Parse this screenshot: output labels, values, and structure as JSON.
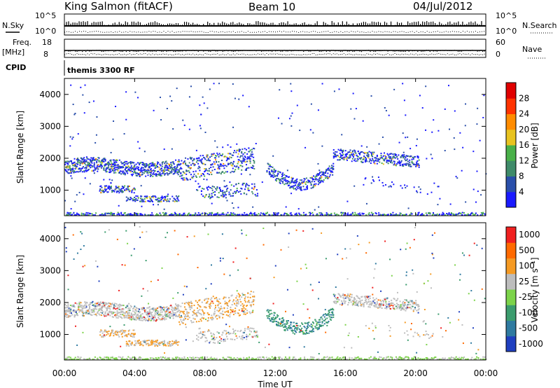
{
  "header": {
    "station": "King Salmon (fitACF)",
    "beam": "Beam 10",
    "date": "04/Jul/2012"
  },
  "top_panels": {
    "nsky_label": "N.Sky",
    "nsearch_label": "N.Search",
    "nsky_ticks": [
      "10^5",
      "10^0"
    ],
    "nsearch_ticks": [
      "10^5",
      "10^0"
    ],
    "freq_label": "Freq.",
    "freq_unit": "[MHz]",
    "freq_ticks": [
      "18",
      "8"
    ],
    "nave_label": "Nave",
    "nave_ticks": [
      "60",
      "0"
    ],
    "cpid_label": "CPID",
    "cpid_value": "themis 3300 RF"
  },
  "chart_data": [
    {
      "type": "heatmap",
      "name": "power-panel",
      "ylabel": "Slant Range [km]",
      "ylim": [
        200,
        4500
      ],
      "yticks": [
        "1000",
        "2000",
        "3000",
        "4000"
      ],
      "colorbar_label": "Power [dB]",
      "colorbar_ticks": [
        "4",
        "8",
        "12",
        "16",
        "20",
        "24",
        "28"
      ],
      "colorbar_colors": [
        "#1a1aff",
        "#2a4faa",
        "#3f8b6a",
        "#49b049",
        "#e8c320",
        "#ff8c00",
        "#ff3300",
        "#e00000"
      ]
    },
    {
      "type": "heatmap",
      "name": "velocity-panel",
      "ylabel": "Slant Range [km]",
      "ylim": [
        200,
        4500
      ],
      "yticks": [
        "1000",
        "2000",
        "3000",
        "4000"
      ],
      "colorbar_label": "Velocity [m s⁻¹]",
      "colorbar_ticks": [
        "1000",
        "500",
        "100",
        "25",
        "-25",
        "-100",
        "-500",
        "-1000"
      ],
      "colorbar_colors": [
        "#1f3fbf",
        "#2f7aa0",
        "#3b9c6e",
        "#7cd34a",
        "#bdbdbd",
        "#f59a23",
        "#ff6a00",
        "#f02020"
      ]
    }
  ],
  "time_axis": {
    "label": "Time UT",
    "ticks": [
      "00:00",
      "04:00",
      "08:00",
      "12:00",
      "16:00",
      "20:00",
      "00:00"
    ]
  }
}
